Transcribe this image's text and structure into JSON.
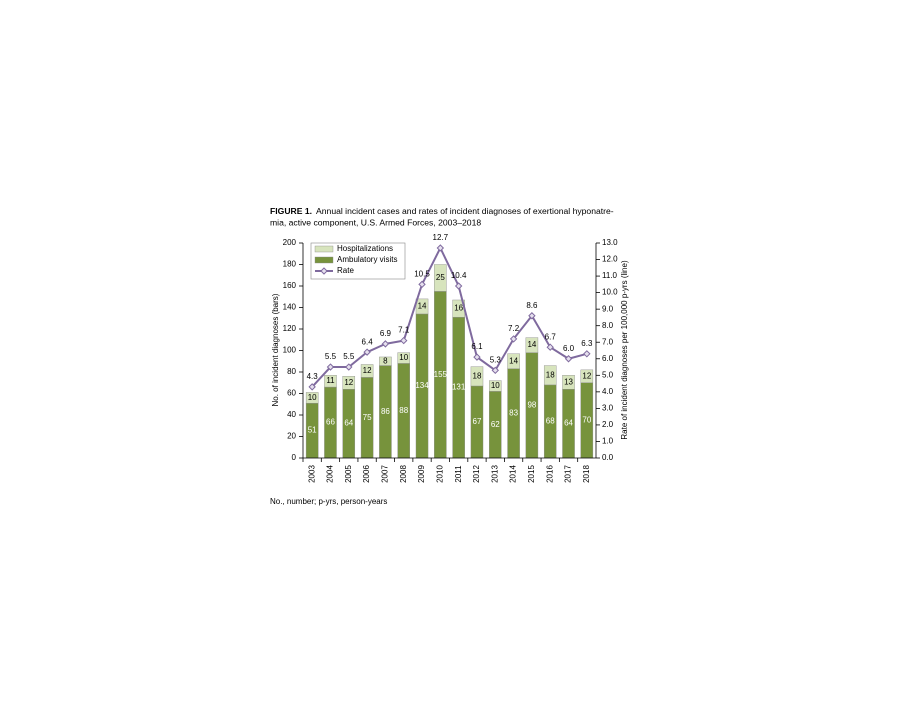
{
  "chart_data": {
    "type": "bar",
    "stacked": true,
    "figure_label": "FIGURE 1.",
    "title_lines": [
      "Annual incident cases and rates of incident diagnoses of exertional hyponatre-",
      "mia, active component, U.S. Armed Forces, 2003–2018"
    ],
    "ylabel": "No. of incident diagnoses (bars)",
    "y2label": "Rate of incident diagnoses per 100,000 p-yrs (line)",
    "footnote": "No., number; p-yrs, person-years",
    "categories": [
      "2003",
      "2004",
      "2005",
      "2006",
      "2007",
      "2008",
      "2009",
      "2010",
      "2011",
      "2012",
      "2013",
      "2014",
      "2015",
      "2016",
      "2017",
      "2018"
    ],
    "series": [
      {
        "name": "Ambulatory visits",
        "color": "#77933c",
        "label_color": "#ffffff",
        "values": [
          51,
          66,
          64,
          75,
          86,
          88,
          134,
          155,
          131,
          67,
          62,
          83,
          98,
          68,
          64,
          70
        ]
      },
      {
        "name": "Hospitalizations",
        "color": "#d7e4bd",
        "label_color": "#000000",
        "values": [
          10,
          11,
          12,
          12,
          8,
          10,
          14,
          25,
          16,
          18,
          10,
          14,
          14,
          18,
          13,
          12
        ]
      },
      {
        "name": "Rate",
        "color": "#7f6a9e",
        "type": "line",
        "axis": "y2",
        "values": [
          4.3,
          5.5,
          5.5,
          6.4,
          6.9,
          7.1,
          10.5,
          12.7,
          10.4,
          6.1,
          5.3,
          7.2,
          8.6,
          6.7,
          6.0,
          6.3
        ],
        "value_labels": [
          "4.3",
          "5.5",
          "5.5",
          "6.4",
          "6.9",
          "7.1",
          "10.5",
          "12.7",
          "10.4",
          "6.1",
          "5.3",
          "7.2",
          "8.6",
          "6.7",
          "6.0",
          "6.3"
        ]
      }
    ],
    "ylim": [
      0,
      200
    ],
    "yticks": [
      0,
      20,
      40,
      60,
      80,
      100,
      120,
      140,
      160,
      180,
      200
    ],
    "y2lim": [
      0,
      13
    ],
    "y2ticks": [
      {
        "value": 0,
        "label": "0.0"
      },
      {
        "value": 1,
        "label": "1.0"
      },
      {
        "value": 2,
        "label": "2.0"
      },
      {
        "value": 3,
        "label": "3.0"
      },
      {
        "value": 4,
        "label": "4.0"
      },
      {
        "value": 5,
        "label": "5.0"
      },
      {
        "value": 6,
        "label": "6.0"
      },
      {
        "value": 7,
        "label": "7.0"
      },
      {
        "value": 8,
        "label": "8.0"
      },
      {
        "value": 9,
        "label": "9.0"
      },
      {
        "value": 10,
        "label": "10.0"
      },
      {
        "value": 11,
        "label": "11.0"
      },
      {
        "value": 12,
        "label": "12.0"
      },
      {
        "value": 13,
        "label": "13.0"
      }
    ],
    "legend": "upper left"
  }
}
